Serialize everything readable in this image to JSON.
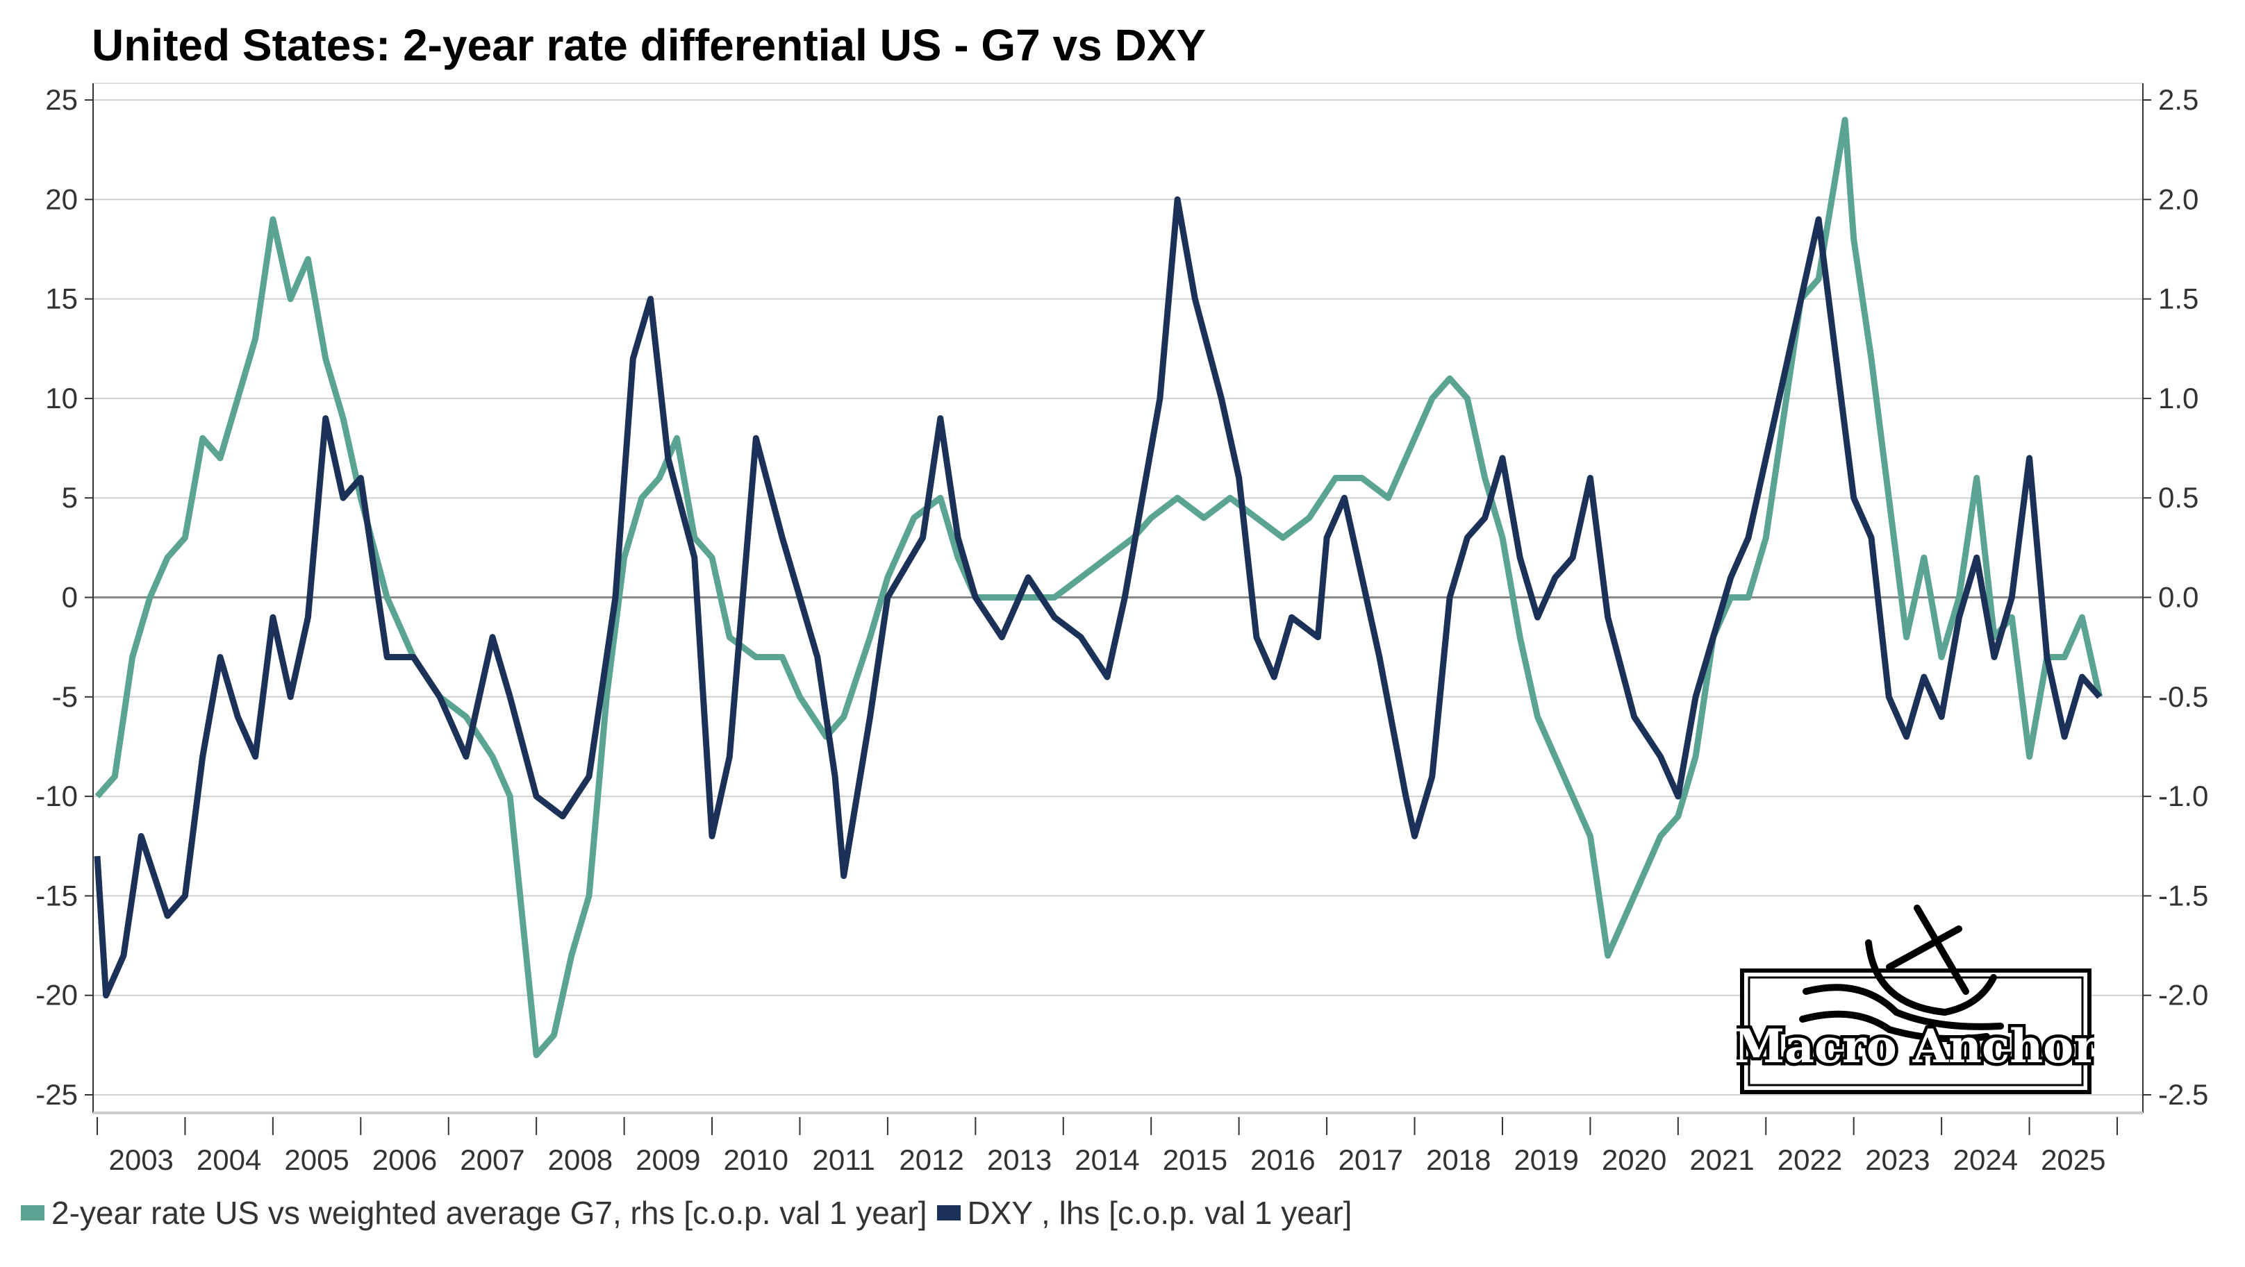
{
  "chart_data": {
    "type": "line",
    "title": "United States: 2-year rate differential US - G7 vs DXY",
    "xlabel": "",
    "x_ticks": [
      "2003",
      "2004",
      "2005",
      "2006",
      "2007",
      "2008",
      "2009",
      "2010",
      "2011",
      "2012",
      "2013",
      "2014",
      "2015",
      "2016",
      "2017",
      "2018",
      "2019",
      "2020",
      "2021",
      "2022",
      "2023",
      "2024",
      "2025"
    ],
    "xlim": [
      2003,
      2026
    ],
    "ylim_left": [
      -25,
      25
    ],
    "ylim_right": [
      -2.5,
      2.5
    ],
    "y_ticks_left": [
      "25",
      "20",
      "15",
      "10",
      "5",
      "0",
      "-5",
      "-10",
      "-15",
      "-20",
      "-25"
    ],
    "y_ticks_right": [
      "2.5",
      "2.0",
      "1.5",
      "1.0",
      "0.5",
      "0.0",
      "-0.5",
      "-1.0",
      "-1.5",
      "-2.0",
      "-2.5"
    ],
    "grid": true,
    "legend_position": "bottom",
    "series": [
      {
        "name": "2-year rate US vs weighted average G7, rhs [c.o.p. val 1 year]",
        "axis": "right",
        "color": "#5BA393",
        "x": [
          2003.0,
          2003.2,
          2003.4,
          2003.6,
          2003.8,
          2004.0,
          2004.2,
          2004.4,
          2004.6,
          2004.8,
          2005.0,
          2005.2,
          2005.4,
          2005.6,
          2005.8,
          2006.0,
          2006.3,
          2006.6,
          2006.9,
          2007.2,
          2007.5,
          2007.7,
          2008.0,
          2008.2,
          2008.4,
          2008.6,
          2008.8,
          2009.0,
          2009.2,
          2009.4,
          2009.6,
          2009.8,
          2010.0,
          2010.2,
          2010.5,
          2010.8,
          2011.0,
          2011.3,
          2011.5,
          2011.8,
          2012.0,
          2012.3,
          2012.6,
          2012.8,
          2013.0,
          2013.3,
          2013.6,
          2013.9,
          2014.2,
          2014.5,
          2014.8,
          2015.0,
          2015.3,
          2015.6,
          2015.9,
          2016.2,
          2016.5,
          2016.8,
          2017.1,
          2017.4,
          2017.7,
          2018.0,
          2018.2,
          2018.4,
          2018.6,
          2018.8,
          2019.0,
          2019.2,
          2019.4,
          2019.6,
          2019.8,
          2020.0,
          2020.2,
          2020.4,
          2020.6,
          2020.8,
          2021.0,
          2021.2,
          2021.4,
          2021.6,
          2021.8,
          2022.0,
          2022.2,
          2022.4,
          2022.6,
          2022.9,
          2023.0,
          2023.2,
          2023.4,
          2023.6,
          2023.8,
          2024.0,
          2024.2,
          2024.4,
          2024.6,
          2024.8,
          2025.0,
          2025.2,
          2025.4,
          2025.6,
          2025.8
        ],
        "values": [
          -1.0,
          -0.9,
          -0.3,
          0.0,
          0.2,
          0.3,
          0.8,
          0.7,
          1.0,
          1.3,
          1.9,
          1.5,
          1.7,
          1.2,
          0.9,
          0.5,
          0.0,
          -0.3,
          -0.5,
          -0.6,
          -0.8,
          -1.0,
          -2.3,
          -2.2,
          -1.8,
          -1.5,
          -0.5,
          0.2,
          0.5,
          0.6,
          0.8,
          0.3,
          0.2,
          -0.2,
          -0.3,
          -0.3,
          -0.5,
          -0.7,
          -0.6,
          -0.2,
          0.1,
          0.4,
          0.5,
          0.2,
          0.0,
          0.0,
          0.0,
          0.0,
          0.1,
          0.2,
          0.3,
          0.4,
          0.5,
          0.4,
          0.5,
          0.4,
          0.3,
          0.4,
          0.6,
          0.6,
          0.5,
          0.8,
          1.0,
          1.1,
          1.0,
          0.6,
          0.3,
          -0.2,
          -0.6,
          -0.8,
          -1.0,
          -1.2,
          -1.8,
          -1.6,
          -1.4,
          -1.2,
          -1.1,
          -0.8,
          -0.2,
          0.0,
          0.0,
          0.3,
          0.9,
          1.5,
          1.6,
          2.4,
          1.8,
          1.2,
          0.5,
          -0.2,
          0.2,
          -0.3,
          0.0,
          0.6,
          -0.2,
          -0.1,
          -0.8,
          -0.3,
          -0.3,
          -0.1,
          -0.5
        ]
      },
      {
        "name": "DXY , lhs [c.o.p. val 1 year]",
        "axis": "left",
        "color": "#1B3157",
        "x": [
          2003.0,
          2003.1,
          2003.3,
          2003.5,
          2003.8,
          2004.0,
          2004.2,
          2004.4,
          2004.6,
          2004.8,
          2005.0,
          2005.2,
          2005.4,
          2005.6,
          2005.8,
          2006.0,
          2006.3,
          2006.6,
          2006.9,
          2007.2,
          2007.5,
          2007.7,
          2008.0,
          2008.3,
          2008.6,
          2008.9,
          2009.1,
          2009.3,
          2009.5,
          2009.8,
          2010.0,
          2010.2,
          2010.5,
          2010.8,
          2011.0,
          2011.2,
          2011.4,
          2011.5,
          2011.8,
          2012.0,
          2012.4,
          2012.6,
          2012.8,
          2013.0,
          2013.3,
          2013.6,
          2013.9,
          2014.2,
          2014.5,
          2014.7,
          2014.9,
          2015.1,
          2015.3,
          2015.5,
          2015.8,
          2016.0,
          2016.2,
          2016.4,
          2016.6,
          2016.9,
          2017.0,
          2017.2,
          2017.4,
          2017.6,
          2017.9,
          2018.0,
          2018.2,
          2018.4,
          2018.6,
          2018.8,
          2019.0,
          2019.2,
          2019.4,
          2019.6,
          2019.8,
          2020.0,
          2020.2,
          2020.5,
          2020.8,
          2021.0,
          2021.2,
          2021.4,
          2021.6,
          2021.8,
          2022.0,
          2022.3,
          2022.6,
          2022.8,
          2023.0,
          2023.2,
          2023.4,
          2023.6,
          2023.8,
          2024.0,
          2024.2,
          2024.4,
          2024.6,
          2024.8,
          2025.0,
          2025.2,
          2025.4,
          2025.6,
          2025.8
        ],
        "values": [
          -13,
          -20,
          -18,
          -12,
          -16,
          -15,
          -8,
          -3,
          -6,
          -8,
          -1,
          -5,
          -1,
          9,
          5,
          6,
          -3,
          -3,
          -5,
          -8,
          -2,
          -5,
          -10,
          -11,
          -9,
          0,
          12,
          15,
          7,
          2,
          -12,
          -8,
          8,
          3,
          0,
          -3,
          -9,
          -14,
          -6,
          0,
          3,
          9,
          3,
          0,
          -2,
          1,
          -1,
          -2,
          -4,
          0,
          5,
          10,
          20,
          15,
          10,
          6,
          -2,
          -4,
          -1,
          -2,
          3,
          5,
          1,
          -3,
          -10,
          -12,
          -9,
          0,
          3,
          4,
          7,
          2,
          -1,
          1,
          2,
          6,
          -1,
          -6,
          -8,
          -10,
          -5,
          -2,
          1,
          3,
          7,
          13,
          19,
          12,
          5,
          3,
          -5,
          -7,
          -4,
          -6,
          -1,
          2,
          -3,
          0,
          7,
          -3,
          -7,
          -4,
          -5
        ]
      }
    ]
  },
  "logo": {
    "text": "Macro Anchor"
  }
}
